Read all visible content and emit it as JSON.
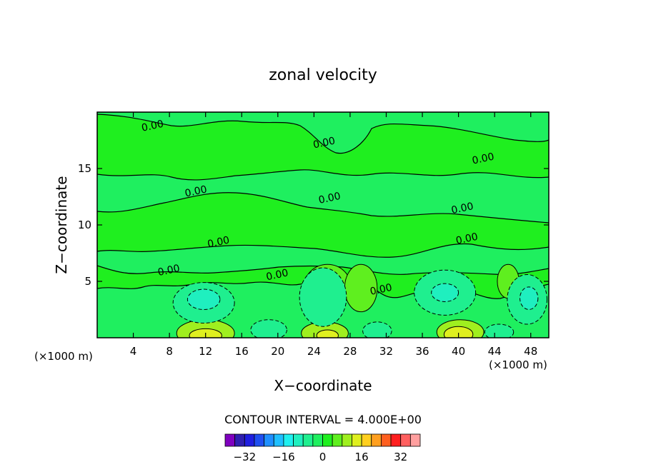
{
  "chart_data": {
    "type": "contour",
    "title": "zonal velocity",
    "xlabel": "X−coordinate",
    "ylabel": "Z−coordinate",
    "x_unit_left": "(×1000 m)",
    "x_unit_right": "(×1000 m)",
    "xlim": [
      0,
      50
    ],
    "ylim": [
      0,
      20
    ],
    "x_ticks": [
      4,
      8,
      12,
      16,
      20,
      24,
      28,
      32,
      36,
      40,
      44,
      48
    ],
    "y_ticks": [
      5,
      10,
      15
    ],
    "contour_interval_label": "CONTOUR INTERVAL = 4.000E+00",
    "contour_labels": [
      {
        "text": "0.00",
        "x": 6.2,
        "y": 18.5
      },
      {
        "text": "0.00",
        "x": 25.2,
        "y": 17.0
      },
      {
        "text": "0.00",
        "x": 42.8,
        "y": 15.6
      },
      {
        "text": "0.00",
        "x": 11.0,
        "y": 12.7
      },
      {
        "text": "0.00",
        "x": 25.8,
        "y": 12.1
      },
      {
        "text": "0.00",
        "x": 40.5,
        "y": 11.2
      },
      {
        "text": "0.00",
        "x": 13.5,
        "y": 8.2
      },
      {
        "text": "0.00",
        "x": 41.0,
        "y": 8.5
      },
      {
        "text": "0.00",
        "x": 8.0,
        "y": 5.7
      },
      {
        "text": "0.00",
        "x": 20.0,
        "y": 5.3
      },
      {
        "text": "0.00",
        "x": 31.5,
        "y": 4.0
      }
    ],
    "colorbar": {
      "levels": [
        -36,
        -32,
        -28,
        -24,
        -20,
        -16,
        -12,
        -8,
        -4,
        0,
        4,
        8,
        12,
        16,
        20,
        24,
        28,
        32,
        36
      ],
      "tick_labels": [
        -32,
        -16,
        0,
        16,
        32
      ],
      "colors": [
        "#7f00bf",
        "#2f1fb0",
        "#1f1fe0",
        "#1f4ff0",
        "#1f8fff",
        "#1fbfff",
        "#1fefef",
        "#1fefbf",
        "#1fef8f",
        "#1fef5f",
        "#1fef1f",
        "#5fef1f",
        "#9fef1f",
        "#dfef1f",
        "#ffcf1f",
        "#ff9f1f",
        "#ff5f1f",
        "#ff1f1f",
        "#ff5f5f",
        "#ff9f9f"
      ]
    },
    "regions": [
      {
        "level": 4,
        "x": 25.5,
        "y": 4.5,
        "rx": 2.6,
        "ry": 2.0
      },
      {
        "level": 4,
        "x": 29.2,
        "y": 4.4,
        "rx": 1.8,
        "ry": 2.1
      },
      {
        "level": 4,
        "x": 45.5,
        "y": 5.0,
        "rx": 1.2,
        "ry": 1.5
      },
      {
        "level": 8,
        "x": 12.0,
        "y": 0.4,
        "rx": 3.2,
        "ry": 1.2
      },
      {
        "level": 8,
        "x": 25.2,
        "y": 0.4,
        "rx": 2.6,
        "ry": 1.0
      },
      {
        "level": 8,
        "x": 40.2,
        "y": 0.5,
        "rx": 2.6,
        "ry": 1.1
      },
      {
        "level": 12,
        "x": 12.0,
        "y": 0.2,
        "rx": 1.8,
        "ry": 0.6
      },
      {
        "level": 12,
        "x": 25.5,
        "y": 0.2,
        "rx": 1.2,
        "ry": 0.5
      },
      {
        "level": 12,
        "x": 40.0,
        "y": 0.3,
        "rx": 1.6,
        "ry": 0.7
      },
      {
        "level": -4,
        "x": 11.8,
        "y": 3.1,
        "rx": 3.4,
        "ry": 1.8
      },
      {
        "level": -4,
        "x": 25.0,
        "y": 3.6,
        "rx": 2.6,
        "ry": 2.6
      },
      {
        "level": -4,
        "x": 38.5,
        "y": 4.0,
        "rx": 3.4,
        "ry": 2.0
      },
      {
        "level": -4,
        "x": 47.6,
        "y": 3.4,
        "rx": 2.2,
        "ry": 2.2
      },
      {
        "level": -4,
        "x": 19.0,
        "y": 0.7,
        "rx": 2.0,
        "ry": 0.9
      },
      {
        "level": -4,
        "x": 31.0,
        "y": 0.6,
        "rx": 1.6,
        "ry": 0.8
      },
      {
        "level": -4,
        "x": 44.5,
        "y": 0.5,
        "rx": 1.6,
        "ry": 0.7
      },
      {
        "level": -8,
        "x": 11.8,
        "y": 3.4,
        "rx": 1.8,
        "ry": 0.9
      },
      {
        "level": -8,
        "x": 38.5,
        "y": 4.0,
        "rx": 1.5,
        "ry": 0.8
      },
      {
        "level": -8,
        "x": 47.8,
        "y": 3.5,
        "rx": 1.0,
        "ry": 1.0
      }
    ]
  }
}
